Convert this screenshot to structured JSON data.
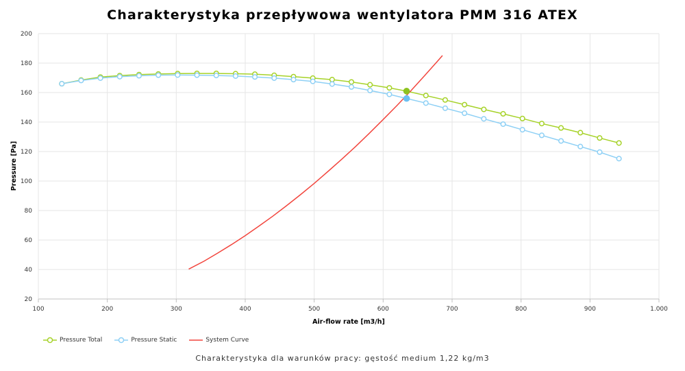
{
  "title": "Charakterystyka przepływowa wentylatora PMM 316 ATEX",
  "footer_note": "Charakterystyka dla warunków pracy: gęstość medium 1,22 kg/m3",
  "chart_data": {
    "type": "line",
    "xlabel": "Air-flow rate [m3/h]",
    "ylabel": "Pressure [Pa]",
    "xlim": [
      100,
      1000
    ],
    "ylim": [
      20,
      200
    ],
    "x_ticks": [
      "100",
      "200",
      "300",
      "400",
      "500",
      "600",
      "700",
      "800",
      "900",
      "1.000"
    ],
    "y_ticks": [
      "20",
      "40",
      "60",
      "80",
      "100",
      "120",
      "140",
      "160",
      "180",
      "200"
    ],
    "grid": true,
    "legend_position": "bottom-left",
    "series": [
      {
        "name": "Pressure Total",
        "color": "#a6d228",
        "marker": "circle",
        "x": [
          134,
          162,
          190,
          218,
          246,
          274,
          302,
          330,
          358,
          386,
          414,
          442,
          470,
          498,
          526,
          554,
          581,
          609,
          634,
          662,
          690,
          718,
          746,
          774,
          802,
          830,
          858,
          886,
          914,
          942
        ],
        "y": [
          166,
          168.5,
          170.5,
          171.5,
          172.2,
          172.6,
          172.9,
          173,
          173,
          172.8,
          172.5,
          171.7,
          170.8,
          169.8,
          168.8,
          167.2,
          165.3,
          163.2,
          161,
          158,
          155,
          151.8,
          148.6,
          145.6,
          142.4,
          139,
          136,
          132.8,
          129.2,
          125.8
        ]
      },
      {
        "name": "Pressure Static",
        "color": "#8ed0f5",
        "marker": "circle",
        "x": [
          134,
          162,
          190,
          218,
          246,
          274,
          302,
          330,
          358,
          386,
          414,
          442,
          470,
          498,
          526,
          554,
          581,
          609,
          634,
          662,
          690,
          718,
          746,
          774,
          802,
          830,
          858,
          886,
          914,
          942
        ],
        "y": [
          166,
          168.2,
          169.8,
          170.8,
          171.4,
          171.8,
          171.9,
          171.8,
          171.6,
          171.2,
          170.6,
          169.8,
          168.8,
          167.6,
          165.8,
          163.8,
          161.4,
          158.8,
          156,
          152.9,
          149.4,
          146,
          142.2,
          138.6,
          134.8,
          131,
          127.2,
          123.4,
          119.6,
          115.2
        ]
      },
      {
        "name": "System Curve",
        "color": "#f2453d",
        "marker": "none",
        "x": [
          318,
          340,
          360,
          380,
          400,
          420,
          440,
          460,
          480,
          500,
          520,
          540,
          560,
          580,
          600,
          620,
          640,
          660,
          680,
          686
        ],
        "y": [
          40.3,
          45.6,
          51.1,
          56.9,
          63.0,
          69.5,
          76.2,
          83.3,
          90.7,
          98.4,
          106.5,
          114.8,
          123.4,
          132.4,
          141.7,
          151.2,
          161.1,
          171.4,
          181.9,
          185.1
        ]
      }
    ],
    "operating_points": [
      {
        "series": "Pressure Total",
        "x": 634,
        "y": 161,
        "color": "#8dc21f"
      },
      {
        "series": "Pressure Static",
        "x": 634,
        "y": 156,
        "color": "#6cc0f2"
      }
    ]
  }
}
